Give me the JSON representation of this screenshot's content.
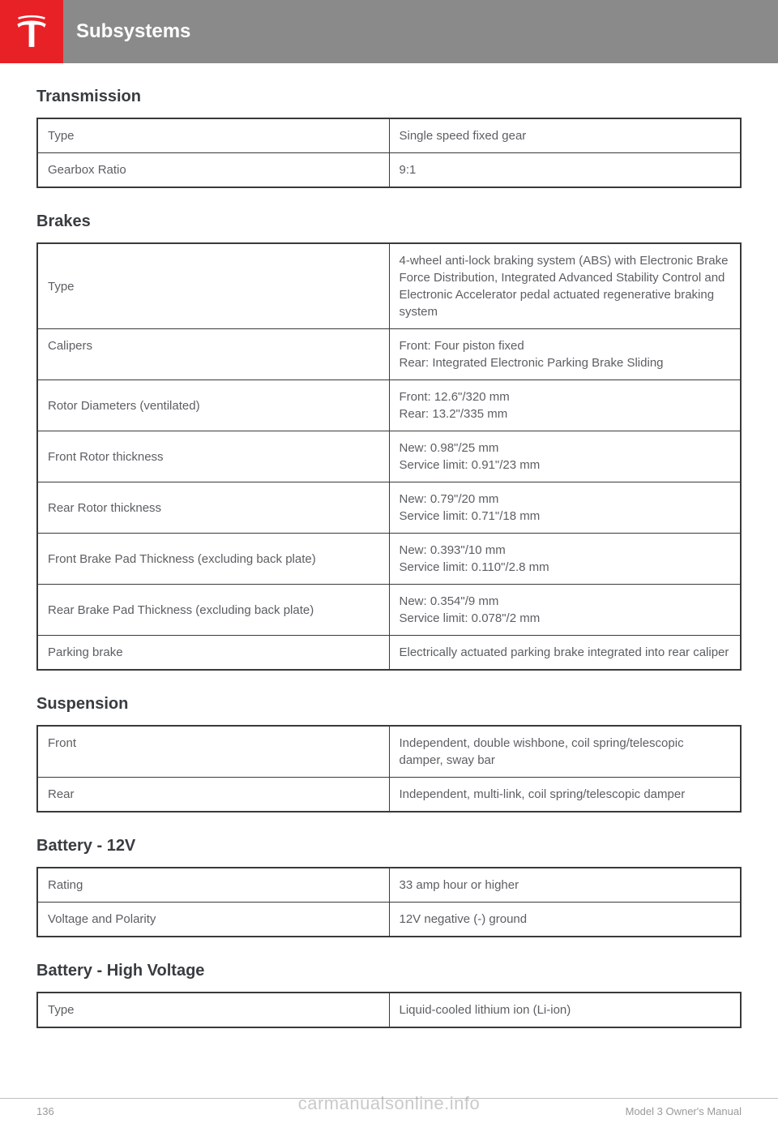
{
  "header": {
    "title": "Subsystems"
  },
  "sections": {
    "transmission": {
      "title": "Transmission",
      "rows": [
        {
          "label": "Type",
          "value": "Single speed fixed gear"
        },
        {
          "label": "Gearbox Ratio",
          "value": "9:1"
        }
      ]
    },
    "brakes": {
      "title": "Brakes",
      "rows": [
        {
          "label": "Type",
          "value": "4-wheel anti-lock braking system (ABS) with Electronic Brake Force Distribution, Integrated Advanced Stability Control and Electronic Accelerator pedal actuated regenerative braking system"
        },
        {
          "label": "Calipers",
          "value": "Front: Four piston fixed\nRear: Integrated Electronic Parking Brake Sliding"
        },
        {
          "label": "Rotor Diameters (ventilated)",
          "value": "Front: 12.6\"/320 mm\nRear: 13.2\"/335 mm"
        },
        {
          "label": "Front Rotor thickness",
          "value": "New: 0.98\"/25 mm\nService limit: 0.91\"/23 mm"
        },
        {
          "label": "Rear Rotor thickness",
          "value": "New: 0.79\"/20 mm\nService limit: 0.71\"/18 mm"
        },
        {
          "label": "Front Brake Pad Thickness (excluding back plate)",
          "value": "New: 0.393\"/10 mm\nService limit: 0.110\"/2.8 mm"
        },
        {
          "label": "Rear Brake Pad Thickness (excluding back plate)",
          "value": "New: 0.354\"/9 mm\nService limit: 0.078\"/2 mm"
        },
        {
          "label": "Parking brake",
          "value": "Electrically actuated parking brake integrated into rear caliper"
        }
      ]
    },
    "suspension": {
      "title": "Suspension",
      "rows": [
        {
          "label": "Front",
          "value": "Independent, double wishbone, coil spring/telescopic damper, sway bar"
        },
        {
          "label": "Rear",
          "value": "Independent, multi-link, coil spring/telescopic damper"
        }
      ]
    },
    "battery12v": {
      "title": "Battery - 12V",
      "rows": [
        {
          "label": "Rating",
          "value": "33 amp hour or higher"
        },
        {
          "label": "Voltage and Polarity",
          "value": "12V negative (-) ground"
        }
      ]
    },
    "batteryHV": {
      "title": "Battery - High Voltage",
      "rows": [
        {
          "label": "Type",
          "value": "Liquid-cooled lithium ion (Li-ion)"
        }
      ]
    }
  },
  "footer": {
    "pageNumber": "136",
    "docTitle": "Model 3 Owner's Manual"
  },
  "watermark": "carmanualsonline.info",
  "colors": {
    "teslaRed": "#e82127",
    "headerGray": "#8a8a8a",
    "textDark": "#393c41",
    "textMuted": "#5c5e62",
    "border": "#3a3a3a"
  }
}
